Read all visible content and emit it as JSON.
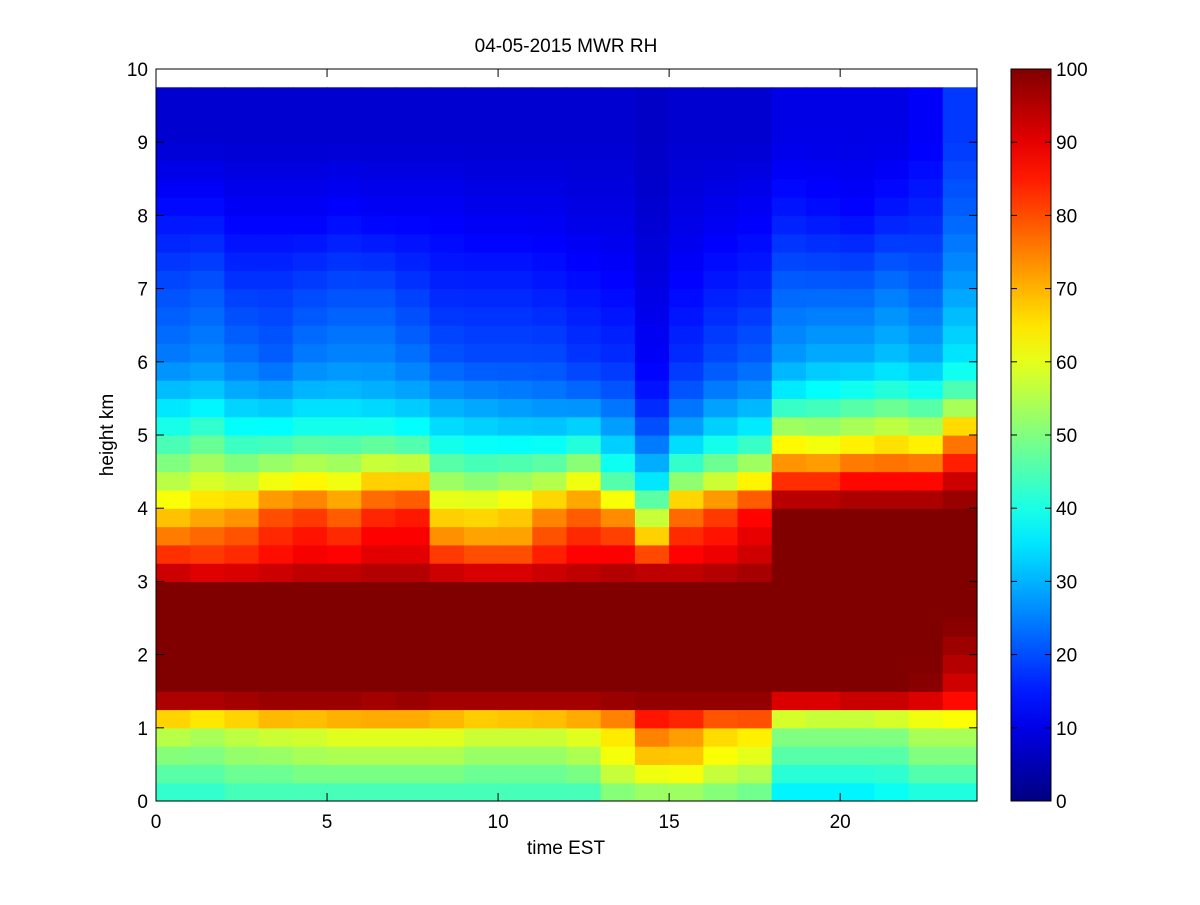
{
  "chart_data": {
    "type": "heatmap",
    "title": "04-05-2015 MWR RH",
    "xlabel": "time EST",
    "ylabel": "height km",
    "xlim": [
      0,
      24
    ],
    "ylim": [
      0,
      10
    ],
    "x_ticks": [
      0,
      5,
      10,
      15,
      20
    ],
    "y_ticks": [
      0,
      1,
      2,
      3,
      4,
      5,
      6,
      7,
      8,
      9,
      10
    ],
    "colorbar": {
      "colormap": "jet",
      "range": [
        0,
        100
      ],
      "ticks": [
        0,
        10,
        20,
        30,
        40,
        50,
        60,
        70,
        80,
        90,
        100
      ]
    },
    "grid": false,
    "time_bins": [
      0,
      1,
      2,
      3,
      4,
      5,
      6,
      7,
      8,
      9,
      10,
      11,
      12,
      13,
      14,
      15,
      16,
      17,
      18,
      19,
      20,
      21,
      22,
      23
    ],
    "time_bin_width": 1,
    "data_top_height": 9.75,
    "profile_heights": [
      0.0,
      0.1,
      0.5,
      1.0,
      1.2,
      1.35,
      1.6,
      2.0,
      2.5,
      3.0,
      3.2,
      3.6,
      4.0,
      4.4,
      5.0,
      5.5,
      6.0,
      7.0,
      8.0,
      9.0,
      9.75
    ],
    "rh_profiles": [
      [
        38,
        42,
        48,
        58,
        72,
        95,
        100,
        100,
        100,
        100,
        88,
        76,
        65,
        55,
        42,
        33,
        25,
        20,
        14,
        8,
        8
      ],
      [
        38,
        42,
        48,
        56,
        70,
        95,
        100,
        100,
        100,
        100,
        85,
        78,
        68,
        58,
        45,
        34,
        26,
        21,
        14,
        8,
        8
      ],
      [
        38,
        44,
        50,
        58,
        72,
        96,
        100,
        100,
        100,
        100,
        86,
        80,
        70,
        56,
        40,
        31,
        24,
        18,
        12,
        8,
        8
      ],
      [
        38,
        44,
        50,
        60,
        75,
        97,
        100,
        100,
        100,
        100,
        88,
        84,
        78,
        60,
        40,
        30,
        22,
        18,
        12,
        8,
        8
      ],
      [
        38,
        44,
        52,
        60,
        74,
        97,
        100,
        100,
        100,
        100,
        90,
        86,
        80,
        62,
        42,
        32,
        25,
        19,
        12,
        8,
        8
      ],
      [
        38,
        44,
        52,
        62,
        75,
        97,
        100,
        100,
        100,
        100,
        90,
        84,
        76,
        60,
        42,
        32,
        26,
        20,
        13,
        8,
        8
      ],
      [
        38,
        44,
        52,
        62,
        76,
        96,
        100,
        100,
        100,
        100,
        92,
        88,
        82,
        66,
        42,
        31,
        26,
        20,
        12,
        8,
        8
      ],
      [
        38,
        44,
        52,
        62,
        76,
        97,
        100,
        100,
        100,
        100,
        92,
        88,
        84,
        66,
        40,
        30,
        24,
        18,
        12,
        8,
        8
      ],
      [
        38,
        44,
        52,
        62,
        74,
        96,
        100,
        100,
        100,
        100,
        88,
        74,
        64,
        52,
        36,
        28,
        21,
        16,
        12,
        8,
        8
      ],
      [
        38,
        44,
        50,
        60,
        72,
        96,
        100,
        100,
        100,
        100,
        86,
        72,
        64,
        50,
        35,
        27,
        20,
        16,
        11,
        8,
        8
      ],
      [
        38,
        44,
        50,
        60,
        73,
        96,
        100,
        100,
        100,
        100,
        86,
        72,
        66,
        52,
        34,
        26,
        20,
        16,
        11,
        8,
        8
      ],
      [
        38,
        44,
        50,
        60,
        74,
        96,
        100,
        100,
        100,
        100,
        88,
        80,
        72,
        54,
        34,
        25,
        20,
        15,
        11,
        8,
        8
      ],
      [
        38,
        44,
        52,
        62,
        76,
        96,
        100,
        100,
        100,
        100,
        90,
        84,
        76,
        60,
        36,
        24,
        18,
        14,
        10,
        8,
        8
      ],
      [
        40,
        50,
        60,
        66,
        80,
        97,
        100,
        100,
        100,
        100,
        92,
        82,
        70,
        44,
        30,
        22,
        17,
        13,
        10,
        8,
        8
      ],
      [
        40,
        52,
        65,
        78,
        90,
        98,
        100,
        100,
        100,
        100,
        90,
        68,
        52,
        34,
        22,
        15,
        12,
        10,
        8,
        7,
        7
      ],
      [
        40,
        52,
        66,
        74,
        90,
        98,
        100,
        100,
        100,
        100,
        90,
        84,
        74,
        50,
        30,
        22,
        17,
        13,
        10,
        8,
        8
      ],
      [
        40,
        50,
        60,
        68,
        86,
        98,
        100,
        100,
        100,
        100,
        92,
        86,
        80,
        56,
        35,
        26,
        20,
        15,
        11,
        8,
        8
      ],
      [
        38,
        48,
        58,
        66,
        88,
        98,
        100,
        100,
        100,
        100,
        94,
        90,
        86,
        62,
        38,
        28,
        22,
        16,
        12,
        8,
        8
      ],
      [
        34,
        36,
        44,
        52,
        62,
        90,
        100,
        100,
        100,
        100,
        100,
        100,
        100,
        82,
        58,
        38,
        28,
        22,
        15,
        10,
        10
      ],
      [
        34,
        36,
        44,
        52,
        60,
        90,
        100,
        100,
        100,
        100,
        100,
        100,
        100,
        82,
        56,
        40,
        30,
        22,
        14,
        10,
        10
      ],
      [
        34,
        36,
        44,
        52,
        60,
        92,
        100,
        100,
        100,
        100,
        100,
        100,
        100,
        86,
        58,
        42,
        30,
        22,
        13,
        10,
        10
      ],
      [
        34,
        38,
        44,
        52,
        62,
        92,
        100,
        100,
        100,
        100,
        100,
        100,
        100,
        86,
        60,
        44,
        32,
        24,
        15,
        10,
        10
      ],
      [
        36,
        40,
        48,
        56,
        64,
        90,
        99,
        100,
        100,
        100,
        100,
        100,
        100,
        86,
        58,
        42,
        30,
        22,
        16,
        12,
        12
      ],
      [
        36,
        40,
        48,
        56,
        66,
        86,
        92,
        96,
        100,
        100,
        100,
        100,
        100,
        92,
        72,
        48,
        36,
        28,
        22,
        18,
        18
      ]
    ]
  }
}
